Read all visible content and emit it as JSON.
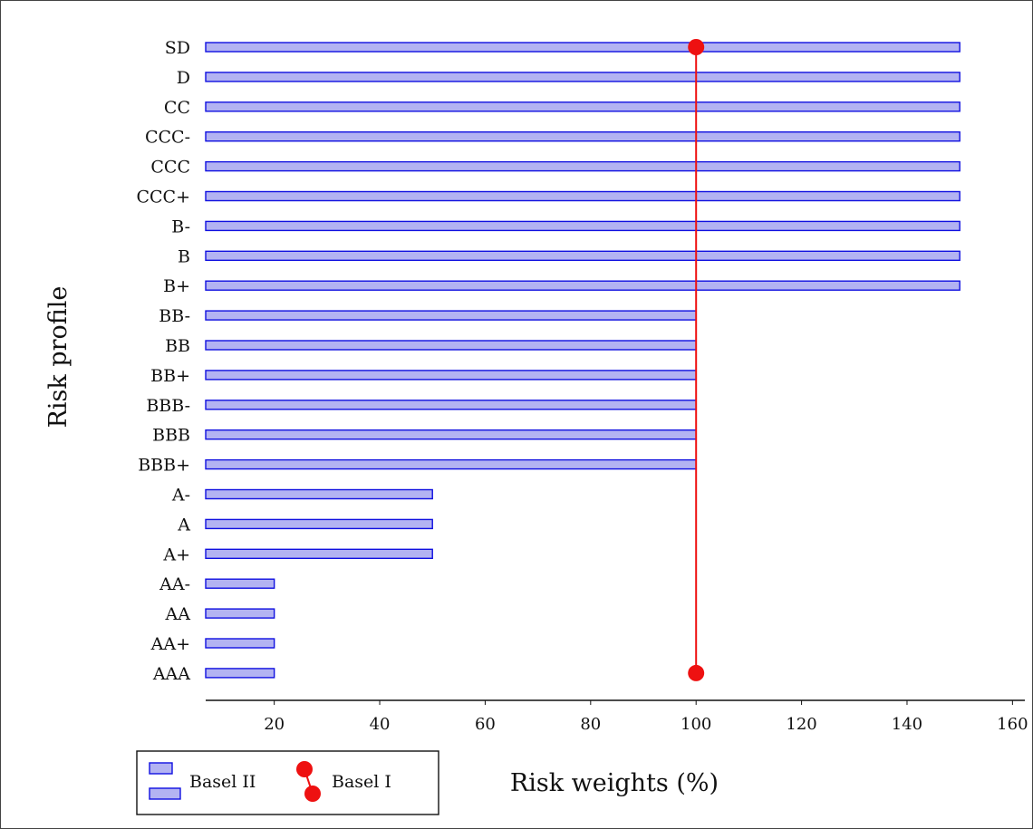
{
  "chart_data": {
    "type": "bar",
    "orientation": "horizontal",
    "categories": [
      "SD",
      "D",
      "CC",
      "CCC-",
      "CCC",
      "CCC+",
      "B-",
      "B",
      "B+",
      "BB-",
      "BB",
      "BB+",
      "BBB-",
      "BBB",
      "BBB+",
      "A-",
      "A",
      "A+",
      "AA-",
      "AA",
      "AA+",
      "AAA"
    ],
    "series": [
      {
        "name": "Basel II",
        "type": "bar",
        "color": "#b3b3f2",
        "stroke": "#1010e0",
        "values": [
          150,
          150,
          150,
          150,
          150,
          150,
          150,
          150,
          150,
          100,
          100,
          100,
          100,
          100,
          100,
          50,
          50,
          50,
          20,
          20,
          20,
          20
        ]
      },
      {
        "name": "Basel I",
        "type": "line",
        "color": "#ee1111",
        "value": 100
      }
    ],
    "xlabel": "Risk weights (%)",
    "ylabel": "Risk profile",
    "xlim": [
      7,
      162
    ],
    "xticks": [
      20,
      40,
      60,
      80,
      100,
      120,
      140,
      160
    ],
    "grid": false,
    "legend_position": "bottom-left"
  }
}
